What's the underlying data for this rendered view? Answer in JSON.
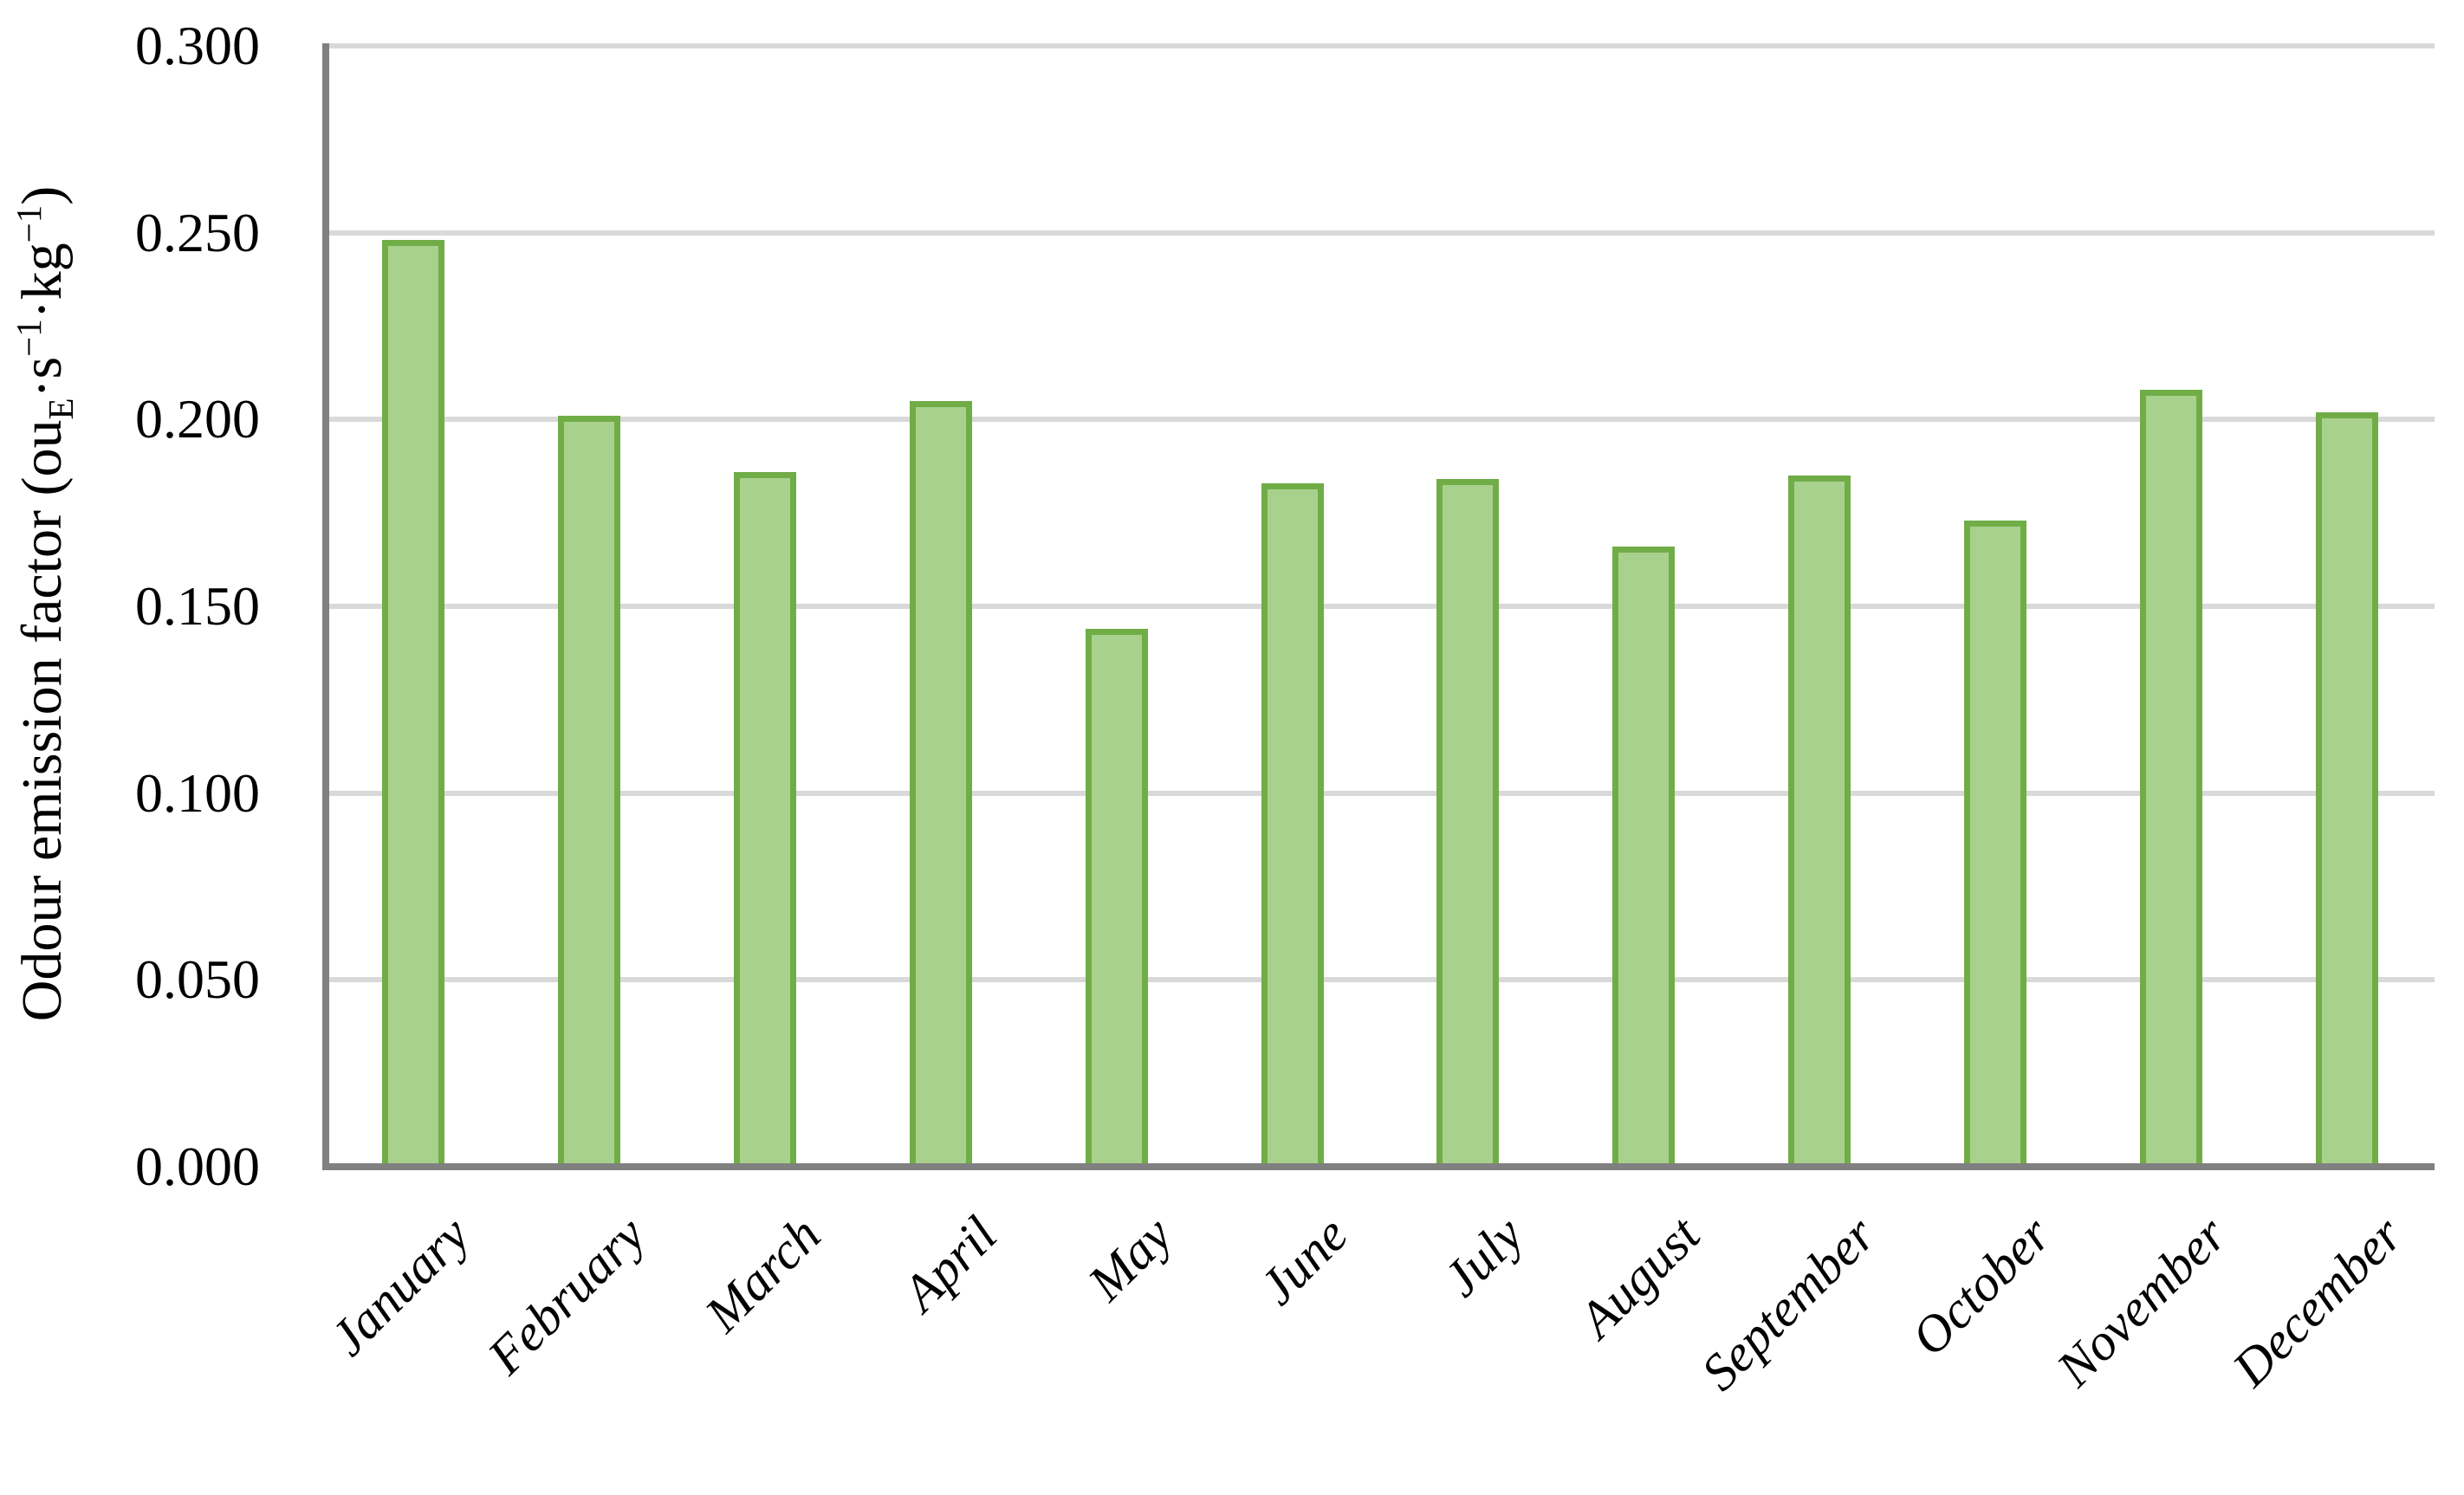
{
  "chart_data": {
    "type": "bar",
    "title": "",
    "xlabel": "",
    "ylabel_text": "Odour emission factor (ouE·s−1·kg−1)",
    "ylabel_parts": {
      "p1": "Odour emission factor (ou",
      "sub1": "E",
      "p2": "·s",
      "sup1": "−1",
      "p3": "·kg",
      "sup2": "−1",
      "p4": ")"
    },
    "categories": [
      "January",
      "February",
      "March",
      "April",
      "May",
      "June",
      "July",
      "August",
      "September",
      "October",
      "November",
      "December"
    ],
    "values": [
      0.248,
      0.201,
      0.186,
      0.205,
      0.144,
      0.183,
      0.184,
      0.166,
      0.185,
      0.173,
      0.208,
      0.202
    ],
    "ylim": [
      0.0,
      0.3
    ],
    "ytick_step": 0.05,
    "ytick_labels": [
      "0.000",
      "0.050",
      "0.100",
      "0.150",
      "0.200",
      "0.250",
      "0.300"
    ],
    "grid": true,
    "legend": "none",
    "colors": {
      "bar_fill": "#A9D18E",
      "bar_border": "#70AD47",
      "gridline": "#D9D9D9",
      "axis": "#808080",
      "text": "#000000"
    }
  }
}
